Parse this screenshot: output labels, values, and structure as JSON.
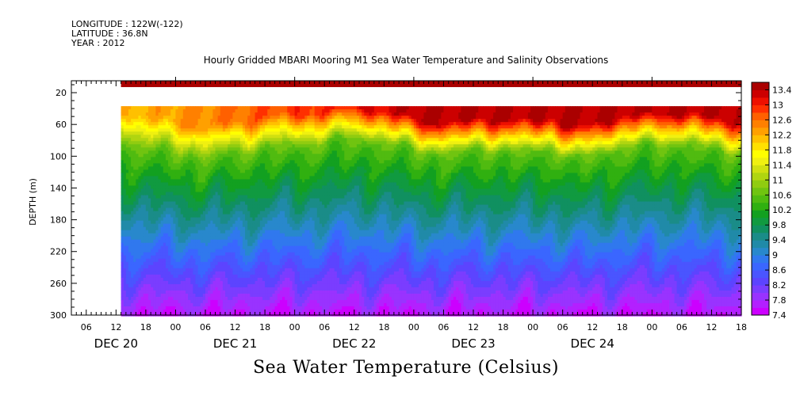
{
  "header": {
    "longitude": "LONGITUDE : 122W(-122)",
    "latitude": "LATITUDE : 36.8N",
    "year": "YEAR : 2012"
  },
  "chart_data": {
    "type": "heatmap",
    "title": "Hourly Gridded MBARI Mooring M1 Sea Water Temperature and Salinity Observations",
    "caption": "Sea Water Temperature (Celsius)",
    "ylabel": "DEPTH (m)",
    "xlabel": "",
    "ylim": [
      300,
      5
    ],
    "y_ticks": [
      20,
      60,
      100,
      140,
      180,
      220,
      260,
      300
    ],
    "x_tick_labels": [
      "06",
      "12",
      "18",
      "00",
      "06",
      "12",
      "18",
      "00",
      "06",
      "12",
      "18",
      "00",
      "06",
      "12",
      "18",
      "00",
      "06",
      "12",
      "18",
      "00",
      "06",
      "12",
      "18"
    ],
    "x_tick_hours": [
      6,
      12,
      18,
      24,
      30,
      36,
      42,
      48,
      54,
      60,
      66,
      72,
      78,
      84,
      90,
      96,
      102,
      108,
      114,
      120,
      126,
      132,
      138
    ],
    "x_range_hours": [
      3,
      138
    ],
    "data_start_hour": 13,
    "date_labels": [
      {
        "label": "DEC 20",
        "hour": 12
      },
      {
        "label": "DEC 21",
        "hour": 36
      },
      {
        "label": "DEC 22",
        "hour": 60
      },
      {
        "label": "DEC 23",
        "hour": 84
      },
      {
        "label": "DEC 24",
        "hour": 108
      }
    ],
    "colorbar": {
      "levels": [
        7.4,
        7.6,
        7.8,
        8.0,
        8.2,
        8.4,
        8.6,
        8.8,
        9.0,
        9.2,
        9.4,
        9.6,
        9.8,
        10.0,
        10.2,
        10.4,
        10.6,
        10.8,
        11.0,
        11.2,
        11.4,
        11.6,
        11.8,
        12.0,
        12.2,
        12.4,
        12.6,
        12.8,
        13.0,
        13.2,
        13.4,
        13.6
      ],
      "labels": [
        "13.4",
        "13",
        "12.6",
        "12.2",
        "11.8",
        "11.4",
        "11",
        "10.6",
        "10.2",
        "9.8",
        "9.4",
        "9",
        "8.6",
        "8.2",
        "7.8",
        "7.4"
      ],
      "colors": [
        "#cc00ff",
        "#b320ff",
        "#9933ff",
        "#7a3dff",
        "#5c44ff",
        "#4a55ff",
        "#3a66ff",
        "#3078ee",
        "#2888cc",
        "#208aa8",
        "#1a8c88",
        "#109060",
        "#109a40",
        "#12a020",
        "#30b010",
        "#50bb10",
        "#70c410",
        "#90cc10",
        "#b0d510",
        "#d0e010",
        "#f0f010",
        "#ffff00",
        "#ffe000",
        "#ffc000",
        "#ffa000",
        "#ff8000",
        "#ff6000",
        "#ff3000",
        "#ee1000",
        "#cc0000",
        "#aa0000"
      ]
    },
    "rows": [
      {
        "depth": 10,
        "values": "≈13.5 (surface band)"
      },
      {
        "depth": 40,
        "values": "12.0–13.0"
      },
      {
        "depth": 60,
        "values": "11.0–13.3"
      },
      {
        "depth": 80,
        "values": "10.6–12.4"
      },
      {
        "depth": 100,
        "values": "10.2–11.5"
      },
      {
        "depth": 140,
        "values": "9.6–10.2"
      },
      {
        "depth": 180,
        "values": "9.0–9.6"
      },
      {
        "depth": 220,
        "values": "8.6–9.0"
      },
      {
        "depth": 260,
        "values": "8.0–8.6"
      },
      {
        "depth": 300,
        "values": "7.4–8.2"
      }
    ]
  }
}
